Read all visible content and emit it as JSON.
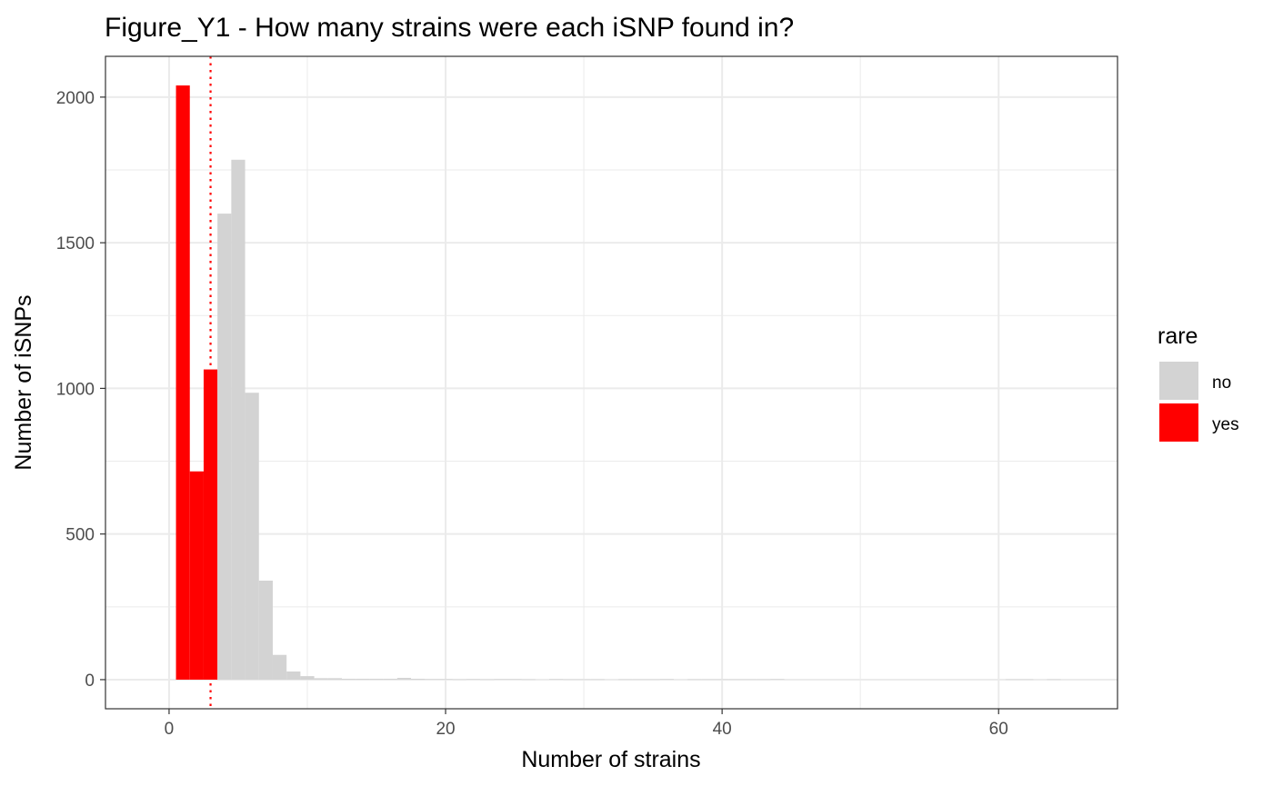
{
  "chart_data": {
    "type": "bar",
    "title": "Figure_Y1 - How many strains were each iSNP found in?",
    "xlabel": "Number of strains",
    "ylabel": "Number of iSNPs",
    "xlim": [
      -4.6,
      68.6
    ],
    "ylim": [
      -100,
      2140
    ],
    "xticks": [
      0,
      20,
      40,
      60
    ],
    "yticks": [
      0,
      500,
      1000,
      1500,
      2000
    ],
    "xtick_labels": [
      "0",
      "20",
      "40",
      "60"
    ],
    "ytick_labels": [
      "0",
      "500",
      "1000",
      "1500",
      "2000"
    ],
    "grid": true,
    "bin_width": 1,
    "threshold_line": {
      "x": 3,
      "color": "#ff0000",
      "style": "dotted"
    },
    "legend": {
      "title": "rare",
      "position": "right",
      "entries": [
        {
          "label": "no",
          "color": "#d3d3d3"
        },
        {
          "label": "yes",
          "color": "#ff0000"
        }
      ]
    },
    "series": [
      {
        "name": "yes",
        "color": "#ff0000",
        "x": [
          1,
          2,
          3
        ],
        "values": [
          2040,
          715,
          1065
        ]
      },
      {
        "name": "no",
        "color": "#d3d3d3",
        "x": [
          4,
          5,
          6,
          7,
          8,
          9,
          10,
          11,
          12,
          13,
          14,
          15,
          16,
          17,
          18,
          19,
          20,
          21,
          22,
          23,
          24,
          25,
          26,
          28,
          29,
          30,
          31,
          33,
          34,
          35,
          36,
          38,
          39,
          40,
          41,
          42,
          43,
          44,
          61,
          62,
          64
        ],
        "values": [
          1600,
          1785,
          985,
          340,
          85,
          28,
          12,
          5,
          5,
          3,
          3,
          3,
          3,
          6,
          3,
          2,
          2,
          1,
          2,
          1,
          2,
          2,
          1,
          2,
          1,
          1,
          1,
          1,
          1,
          1,
          2,
          1,
          1,
          1,
          1,
          1,
          1,
          2,
          1,
          1,
          1
        ]
      }
    ]
  }
}
